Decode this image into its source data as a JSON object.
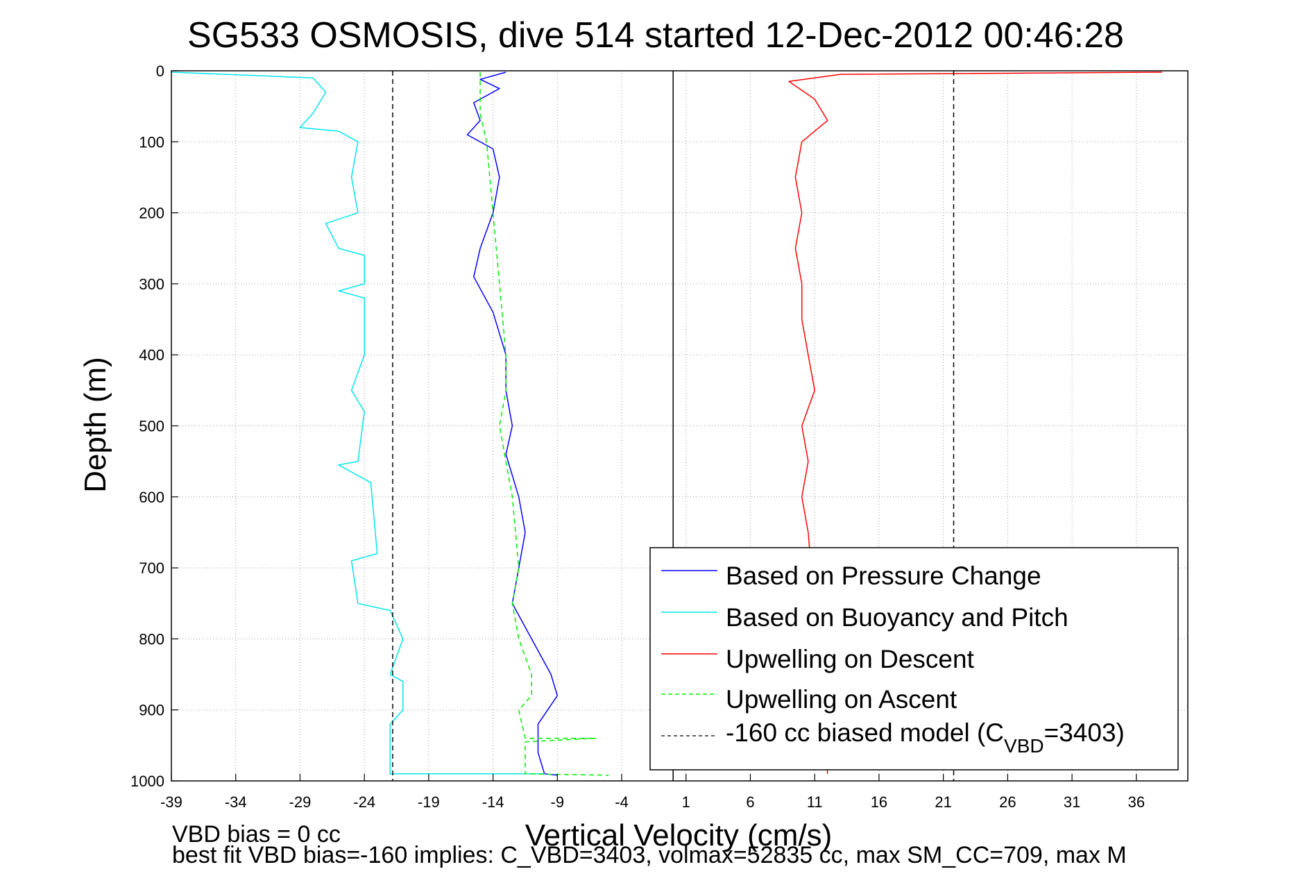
{
  "chart_data": {
    "type": "line",
    "title": "SG533 OSMOSIS, dive 514 started 12-Dec-2012 00:46:28",
    "xlabel": "Vertical Velocity (cm/s)",
    "ylabel": "Depth (m)",
    "xlim": [
      -39,
      40
    ],
    "ylim": [
      1000,
      0
    ],
    "y_reversed": true,
    "grid": true,
    "xticks": [
      -39,
      -34,
      -29,
      -24,
      -19,
      -14,
      -9,
      -4,
      1,
      6,
      11,
      16,
      21,
      26,
      31,
      36
    ],
    "yticks": [
      0,
      100,
      200,
      300,
      400,
      500,
      600,
      700,
      800,
      900,
      1000
    ],
    "legend_position": "bottom-right",
    "series": [
      {
        "name": "Based on Pressure Change",
        "color": "#0000ff",
        "style": "solid",
        "points": [
          [
            -13,
            2
          ],
          [
            -15,
            12
          ],
          [
            -13.5,
            25
          ],
          [
            -15.5,
            45
          ],
          [
            -15,
            70
          ],
          [
            -16,
            90
          ],
          [
            -14,
            110
          ],
          [
            -13.5,
            150
          ],
          [
            -14,
            200
          ],
          [
            -15,
            250
          ],
          [
            -15.5,
            290
          ],
          [
            -14,
            340
          ],
          [
            -13,
            400
          ],
          [
            -13,
            450
          ],
          [
            -12.5,
            500
          ],
          [
            -13,
            540
          ],
          [
            -12,
            600
          ],
          [
            -11.5,
            650
          ],
          [
            -12,
            700
          ],
          [
            -12.5,
            750
          ],
          [
            -11,
            800
          ],
          [
            -9.5,
            850
          ],
          [
            -9,
            880
          ],
          [
            -10.5,
            920
          ],
          [
            -10.5,
            960
          ],
          [
            -10,
            990
          ],
          [
            -9,
            992
          ]
        ]
      },
      {
        "name": "Based on Buoyancy and Pitch",
        "color": "#00e5ee",
        "style": "solid",
        "points": [
          [
            -39,
            2
          ],
          [
            -28,
            10
          ],
          [
            -27,
            30
          ],
          [
            -28,
            60
          ],
          [
            -29,
            80
          ],
          [
            -26,
            85
          ],
          [
            -24.5,
            100
          ],
          [
            -25,
            150
          ],
          [
            -24.5,
            200
          ],
          [
            -27,
            215
          ],
          [
            -26,
            250
          ],
          [
            -24,
            260
          ],
          [
            -24,
            300
          ],
          [
            -26,
            310
          ],
          [
            -24,
            320
          ],
          [
            -24,
            400
          ],
          [
            -25,
            450
          ],
          [
            -24,
            480
          ],
          [
            -24.5,
            550
          ],
          [
            -26,
            555
          ],
          [
            -23.5,
            580
          ],
          [
            -23,
            680
          ],
          [
            -25,
            690
          ],
          [
            -24.5,
            750
          ],
          [
            -22,
            760
          ],
          [
            -21,
            800
          ],
          [
            -22,
            850
          ],
          [
            -21,
            860
          ],
          [
            -21,
            900
          ],
          [
            -22,
            920
          ],
          [
            -22,
            960
          ],
          [
            -22,
            990
          ],
          [
            -10,
            990
          ]
        ]
      },
      {
        "name": "Upwelling on Descent",
        "color": "#ff0000",
        "style": "solid",
        "points": [
          [
            38,
            2
          ],
          [
            13,
            5
          ],
          [
            9,
            15
          ],
          [
            11,
            40
          ],
          [
            12,
            70
          ],
          [
            10,
            100
          ],
          [
            9.5,
            150
          ],
          [
            10,
            200
          ],
          [
            9.5,
            250
          ],
          [
            10,
            300
          ],
          [
            10,
            350
          ],
          [
            10.5,
            400
          ],
          [
            11,
            450
          ],
          [
            10,
            500
          ],
          [
            10.5,
            550
          ],
          [
            10,
            600
          ],
          [
            10.5,
            650
          ],
          [
            12,
            990
          ]
        ]
      },
      {
        "name": "Upwelling on Ascent",
        "color": "#00ee00",
        "style": "dashed",
        "points": [
          [
            -15,
            2
          ],
          [
            -15,
            30
          ],
          [
            -15,
            60
          ],
          [
            -14.5,
            100
          ],
          [
            -14,
            200
          ],
          [
            -13.5,
            300
          ],
          [
            -13,
            400
          ],
          [
            -13,
            450
          ],
          [
            -13.5,
            500
          ],
          [
            -12.5,
            600
          ],
          [
            -12,
            700
          ],
          [
            -12.5,
            750
          ],
          [
            -12,
            800
          ],
          [
            -11,
            850
          ],
          [
            -11,
            880
          ],
          [
            -12,
            900
          ],
          [
            -11.5,
            940
          ],
          [
            -6,
            940
          ],
          [
            -11.5,
            945
          ],
          [
            -11.5,
            990
          ],
          [
            -5,
            992
          ]
        ]
      },
      {
        "name": "-160 cc biased model (C_VBD=3403)",
        "color": "#000000",
        "style": "dashed",
        "points": [
          [
            -21.8,
            0
          ],
          [
            -21.8,
            1000
          ]
        ]
      },
      {
        "name": "-160 cc biased model (C_VBD=3403)",
        "color": "#000000",
        "style": "dashed",
        "points": [
          [
            21.8,
            0
          ],
          [
            21.8,
            1000
          ]
        ]
      },
      {
        "name": "",
        "color": "#000000",
        "style": "solid",
        "points": [
          [
            0,
            0
          ],
          [
            0,
            1000
          ]
        ]
      }
    ],
    "annotations": [
      "VBD bias = 0 cc",
      "best fit VBD bias=-160 implies: C_VBD=3403, volmax=52835 cc, max SM_CC=709, max M"
    ]
  },
  "legend": {
    "items": [
      {
        "label": "Based on Pressure Change",
        "color": "#0000ff",
        "style": "solid"
      },
      {
        "label": "Based on Buoyancy and Pitch",
        "color": "#00e5ee",
        "style": "solid"
      },
      {
        "label": "Upwelling on Descent",
        "color": "#ff0000",
        "style": "solid"
      },
      {
        "label": "Upwelling on Ascent",
        "color": "#00ee00",
        "style": "dashed"
      },
      {
        "label_prefix": "-160 cc biased model (C",
        "label_sub": "VBD",
        "label_suffix": "=3403)",
        "color": "#000000",
        "style": "dashed"
      }
    ]
  }
}
